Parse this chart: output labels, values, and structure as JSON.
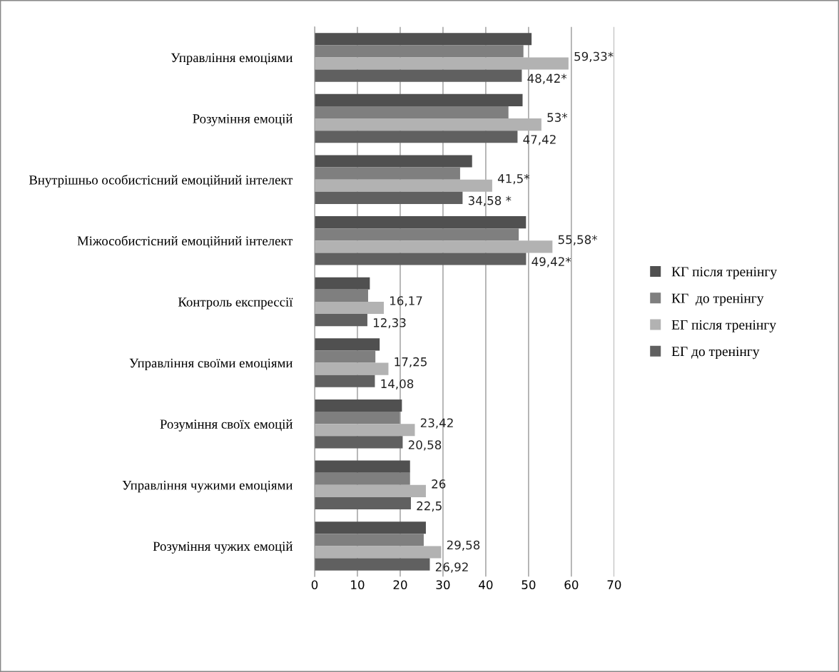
{
  "chart_data": {
    "type": "bar",
    "orientation": "horizontal",
    "categories": [
      "Управління емоціями",
      "Розуміння емоцій",
      "Внутрішньо особистісний емоційний інтелект",
      "Міжособистісний емоційний інтелект",
      "Контроль експрессії",
      "Управління своїми емоціями",
      "Розуміння своїх емоцій",
      "Управління чужими емоціями",
      "Розуміння чужих емоцій"
    ],
    "series": [
      {
        "name": "КГ після тренінгу",
        "color": "#505050",
        "values": [
          50.7,
          48.6,
          36.8,
          49.4,
          12.9,
          15.2,
          20.4,
          22.3,
          26.0
        ]
      },
      {
        "name": "КГ  до тренінгу",
        "color": "#7f7f7f",
        "values": [
          48.8,
          45.3,
          34.0,
          47.7,
          12.5,
          14.2,
          19.9,
          22.3,
          25.5
        ]
      },
      {
        "name": "ЕГ після тренінгу",
        "color": "#b2b2b2",
        "values": [
          59.33,
          53,
          41.5,
          55.58,
          16.17,
          17.25,
          23.42,
          26,
          29.58
        ],
        "value_labels": [
          "59,33*",
          "53*",
          "41,5*",
          "55,58*",
          "16,17",
          "17,25",
          "23,42",
          "26",
          "29,58"
        ]
      },
      {
        "name": "ЕГ до тренінгу",
        "color": "#606060",
        "values": [
          48.42,
          47.42,
          34.58,
          49.42,
          12.33,
          14.08,
          20.58,
          22.5,
          26.92
        ],
        "value_labels": [
          "48,42*",
          "47,42",
          "34,58 *",
          "49,42*",
          "12,33",
          "14,08",
          "20,58",
          "22,5",
          "26,92"
        ]
      }
    ],
    "xlim": [
      0,
      70
    ],
    "xticks": [
      0,
      10,
      20,
      30,
      40,
      50,
      60,
      70
    ],
    "grid": "x",
    "legend": "right"
  }
}
